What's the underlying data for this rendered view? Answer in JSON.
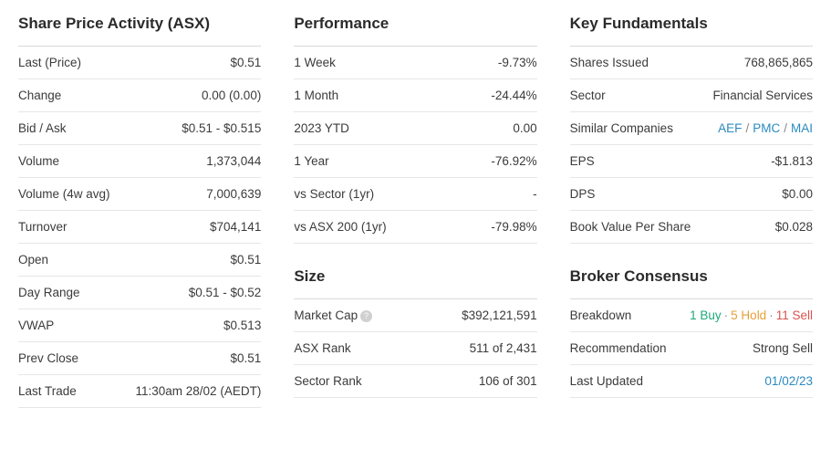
{
  "col1": {
    "title": "Share Price Activity (ASX)",
    "rows": [
      {
        "label": "Last (Price)",
        "value": "$0.51"
      },
      {
        "label": "Change",
        "value": "0.00 (0.00)"
      },
      {
        "label": "Bid / Ask",
        "value": "$0.51 - $0.515"
      },
      {
        "label": "Volume",
        "value": "1,373,044"
      },
      {
        "label": "Volume (4w avg)",
        "value": "7,000,639"
      },
      {
        "label": "Turnover",
        "value": "$704,141"
      },
      {
        "label": "Open",
        "value": "$0.51"
      },
      {
        "label": "Day Range",
        "value": "$0.51 - $0.52"
      },
      {
        "label": "VWAP",
        "value": "$0.513"
      },
      {
        "label": "Prev Close",
        "value": "$0.51"
      },
      {
        "label": "Last Trade",
        "value": "11:30am 28/02 (AEDT)"
      }
    ]
  },
  "col2a": {
    "title": "Performance",
    "rows": [
      {
        "label": "1 Week",
        "value": "-9.73%",
        "neg": true
      },
      {
        "label": "1 Month",
        "value": "-24.44%",
        "neg": true
      },
      {
        "label": "2023 YTD",
        "value": "0.00"
      },
      {
        "label": "1 Year",
        "value": "-76.92%",
        "neg": true
      },
      {
        "label": "vs Sector (1yr)",
        "value": "-"
      },
      {
        "label": "vs ASX 200 (1yr)",
        "value": "-79.98%",
        "neg": true
      }
    ]
  },
  "col2b": {
    "title": "Size",
    "rows": [
      {
        "label": "Market Cap",
        "value": "$392,121,591",
        "help": true
      },
      {
        "label": "ASX Rank",
        "value": "511 of 2,431"
      },
      {
        "label": "Sector Rank",
        "value": "106 of 301"
      }
    ]
  },
  "col3a": {
    "title": "Key Fundamentals",
    "shares_issued_label": "Shares Issued",
    "shares_issued_value": "768,865,865",
    "sector_label": "Sector",
    "sector_value": "Financial Services",
    "similar_label": "Similar Companies",
    "similar_links": [
      "AEF",
      "PMC",
      "MAI"
    ],
    "eps_label": "EPS",
    "eps_value": "-$1.813",
    "dps_label": "DPS",
    "dps_value": "$0.00",
    "bvps_label": "Book Value Per Share",
    "bvps_value": "$0.028"
  },
  "col3b": {
    "title": "Broker Consensus",
    "breakdown_label": "Breakdown",
    "breakdown": {
      "buy": "1 Buy",
      "hold": "5 Hold",
      "sell": "11 Sell"
    },
    "rec_label": "Recommendation",
    "rec_value": "Strong Sell",
    "updated_label": "Last Updated",
    "updated_value": "01/02/23"
  },
  "colors": {
    "text": "#333333",
    "border": "#e6e6e6",
    "neg": "#d9534f",
    "link": "#2b8abf",
    "green": "#1ea97c",
    "orange": "#e6a03a",
    "red": "#d9534f"
  }
}
